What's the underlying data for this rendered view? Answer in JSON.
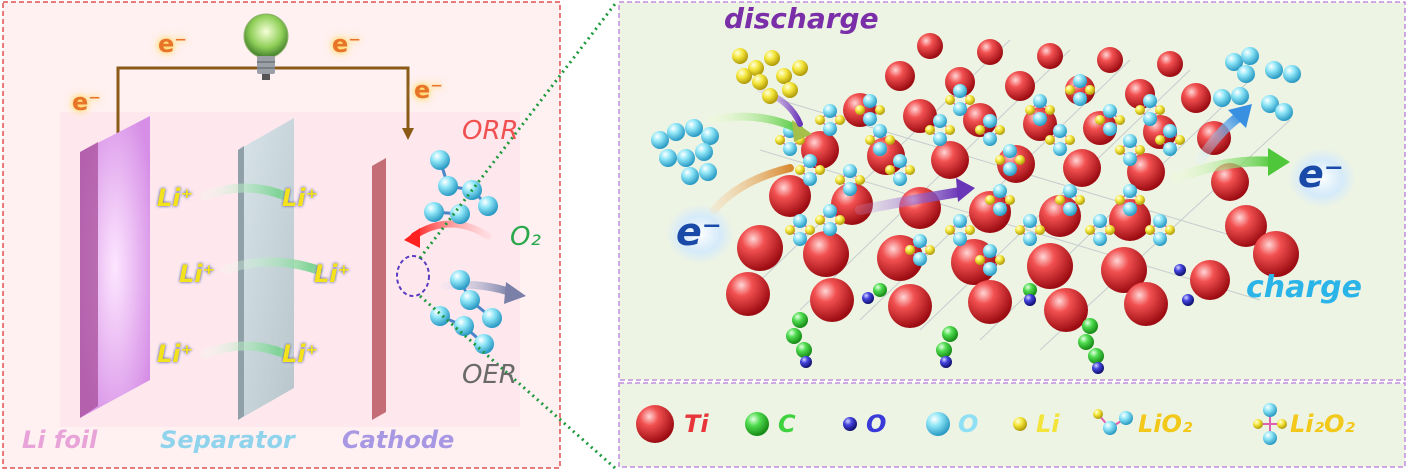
{
  "left_panel": {
    "electron_labels": [
      "e⁻",
      "e⁻",
      "e⁻",
      "e⁻"
    ],
    "li_ion_labels": [
      "Li⁺",
      "Li⁺",
      "Li⁺",
      "Li⁺",
      "Li⁺",
      "Li⁺"
    ],
    "orr_label": "ORR",
    "o2_label": "O₂",
    "oer_label": "OER",
    "bottom_labels": {
      "li_foil": "Li foil",
      "separator": "Separator",
      "cathode": "Cathode"
    }
  },
  "right_panel": {
    "discharge_label": "discharge",
    "charge_label": "charge",
    "electron_left": "e⁻",
    "electron_right": "e⁻"
  },
  "legend": {
    "ti": "Ti",
    "c": "C",
    "o_dark": "O",
    "o_light": "O",
    "li": "Li",
    "lio2": "LiO₂",
    "li2o2": "Li₂O₂"
  },
  "colors": {
    "ti": "#e8353a",
    "c": "#3ed23e",
    "o_dark": "#3a3ad8",
    "o_light": "#7ee0f4",
    "li": "#f2e43a",
    "left_bg": "#fff0f0",
    "right_bg": "#eef5e6",
    "dashed_left": "#e0504a",
    "dashed_right": "#c48de0",
    "dotted_link": "#1e9a3c"
  }
}
